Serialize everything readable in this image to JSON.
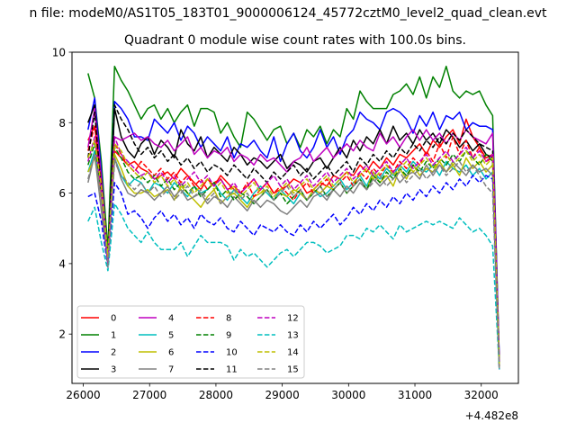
{
  "figure": {
    "suptitle": "n file: modeM0/AS1T05_183T01_9000006124_45772cztM0_level2_quad_clean.evt"
  },
  "chart_data": {
    "type": "line",
    "title": "Quadrant 0 module wise count rates with 100.0s bins.",
    "xlabel": "",
    "ylabel": "",
    "x_offset_label": "+4.482e8",
    "xlim": [
      25830,
      32560
    ],
    "ylim": [
      0.6,
      10
    ],
    "x_ticks": [
      26000,
      27000,
      28000,
      29000,
      30000,
      31000,
      32000
    ],
    "x_tick_labels": [
      "26000",
      "27000",
      "28000",
      "29000",
      "30000",
      "31000",
      "32000"
    ],
    "y_ticks": [
      2,
      4,
      6,
      8,
      10
    ],
    "y_tick_labels": [
      "2",
      "4",
      "6",
      "8",
      "10"
    ],
    "legend_location": "lower left",
    "legend_columns": 4,
    "x": [
      26072,
      26172,
      26272,
      26372,
      26472,
      26572,
      26672,
      26772,
      26872,
      26972,
      27072,
      27172,
      27272,
      27372,
      27472,
      27572,
      27672,
      27772,
      27872,
      27972,
      28072,
      28172,
      28272,
      28372,
      28472,
      28572,
      28672,
      28772,
      28872,
      28972,
      29072,
      29172,
      29272,
      29372,
      29472,
      29572,
      29672,
      29772,
      29872,
      29972,
      30072,
      30172,
      30272,
      30372,
      30472,
      30572,
      30672,
      30772,
      30872,
      30972,
      31072,
      31172,
      31272,
      31372,
      31472,
      31572,
      31672,
      31772,
      31872,
      31972,
      32072,
      32172,
      32272
    ],
    "series": [
      {
        "name": "0",
        "color": "#ff0000",
        "dash": "solid",
        "values": [
          7.5,
          7.9,
          6.3,
          4.2,
          7.2,
          7.0,
          6.8,
          6.9,
          6.7,
          6.6,
          6.4,
          6.5,
          6.6,
          6.4,
          6.7,
          6.5,
          6.3,
          6.1,
          6.4,
          6.2,
          6.5,
          6.3,
          6.1,
          6.0,
          6.2,
          6.4,
          6.1,
          6.3,
          6.0,
          6.1,
          6.2,
          6.4,
          6.3,
          6.0,
          6.1,
          6.3,
          6.2,
          6.5,
          6.4,
          6.6,
          6.5,
          6.8,
          6.6,
          6.9,
          6.7,
          7.0,
          6.8,
          7.1,
          7.0,
          7.2,
          7.4,
          7.1,
          7.5,
          7.3,
          7.6,
          7.8,
          7.4,
          8.1,
          7.6,
          7.3,
          7.0,
          7.1,
          1.1
        ]
      },
      {
        "name": "1",
        "color": "#008000",
        "dash": "solid",
        "values": [
          9.4,
          8.7,
          6.9,
          4.4,
          9.6,
          9.2,
          8.9,
          8.5,
          8.1,
          8.4,
          8.5,
          8.1,
          8.4,
          8.0,
          8.3,
          8.5,
          7.9,
          8.4,
          8.4,
          8.3,
          7.7,
          8.0,
          7.6,
          7.3,
          8.3,
          8.1,
          7.8,
          7.5,
          7.8,
          7.9,
          7.4,
          7.7,
          7.3,
          7.8,
          7.6,
          7.9,
          7.4,
          7.8,
          7.6,
          8.4,
          8.1,
          8.9,
          8.6,
          8.4,
          8.4,
          8.4,
          8.8,
          8.9,
          9.1,
          8.8,
          9.3,
          8.7,
          9.3,
          9.0,
          9.6,
          8.9,
          8.7,
          8.9,
          8.8,
          8.9,
          8.5,
          8.2,
          1.2
        ]
      },
      {
        "name": "2",
        "color": "#0000ff",
        "dash": "solid",
        "values": [
          7.8,
          8.7,
          6.6,
          4.0,
          8.6,
          8.4,
          8.1,
          7.6,
          7.6,
          7.5,
          8.1,
          7.9,
          7.7,
          8.0,
          7.5,
          7.9,
          7.7,
          7.3,
          7.6,
          7.4,
          7.2,
          7.6,
          7.0,
          7.4,
          7.3,
          7.5,
          7.2,
          7.0,
          7.6,
          6.9,
          7.4,
          7.7,
          7.2,
          7.0,
          7.3,
          7.8,
          7.3,
          7.6,
          7.1,
          7.6,
          7.8,
          8.3,
          8.1,
          8.0,
          7.8,
          8.3,
          8.4,
          8.3,
          8.1,
          7.7,
          8.2,
          7.9,
          8.3,
          7.8,
          8.2,
          8.1,
          8.3,
          7.8,
          8.0,
          7.9,
          7.9,
          7.8,
          1.3
        ]
      },
      {
        "name": "3",
        "color": "#000000",
        "dash": "solid",
        "values": [
          8.0,
          8.5,
          6.3,
          4.0,
          8.4,
          7.6,
          7.2,
          7.0,
          7.4,
          7.6,
          7.1,
          7.5,
          7.3,
          7.0,
          7.8,
          7.4,
          7.2,
          7.6,
          7.0,
          7.3,
          7.1,
          6.9,
          7.3,
          7.1,
          6.8,
          7.0,
          6.9,
          6.7,
          6.9,
          7.1,
          6.7,
          6.9,
          6.8,
          6.6,
          6.9,
          7.0,
          6.7,
          7.0,
          7.3,
          7.0,
          7.5,
          7.2,
          7.6,
          7.4,
          7.8,
          7.4,
          7.9,
          7.5,
          7.7,
          7.4,
          7.8,
          7.5,
          7.7,
          7.4,
          7.8,
          7.6,
          7.3,
          7.5,
          7.2,
          7.4,
          7.1,
          7.0,
          1.1
        ]
      },
      {
        "name": "4",
        "color": "#bf00bf",
        "dash": "solid",
        "values": [
          7.3,
          8.4,
          6.4,
          4.1,
          7.6,
          7.5,
          7.6,
          7.7,
          7.5,
          7.6,
          7.4,
          7.3,
          7.5,
          7.2,
          7.4,
          7.6,
          7.1,
          7.3,
          7.0,
          7.2,
          7.1,
          7.3,
          6.9,
          7.1,
          7.0,
          6.8,
          7.1,
          6.9,
          7.0,
          6.8,
          6.6,
          6.9,
          7.0,
          7.3,
          6.9,
          7.1,
          7.3,
          7.0,
          7.2,
          7.4,
          7.2,
          7.5,
          7.3,
          7.2,
          7.7,
          7.4,
          7.6,
          7.3,
          7.6,
          7.8,
          7.5,
          7.8,
          7.5,
          7.7,
          7.4,
          7.7,
          7.5,
          7.8,
          7.6,
          7.5,
          7.4,
          7.7,
          1.2
        ]
      },
      {
        "name": "5",
        "color": "#00bfbf",
        "dash": "solid",
        "values": [
          6.6,
          7.2,
          5.9,
          4.0,
          7.0,
          6.5,
          6.2,
          6.4,
          6.3,
          6.0,
          6.3,
          6.2,
          6.0,
          6.3,
          6.1,
          5.9,
          6.2,
          6.0,
          6.1,
          6.3,
          6.0,
          5.8,
          6.1,
          5.9,
          5.7,
          6.0,
          6.2,
          6.0,
          5.8,
          6.1,
          5.9,
          5.7,
          6.0,
          5.8,
          6.1,
          5.9,
          6.0,
          6.2,
          6.4,
          6.1,
          6.3,
          6.5,
          6.2,
          6.6,
          6.4,
          6.7,
          6.5,
          6.8,
          6.6,
          6.9,
          6.7,
          6.6,
          6.8,
          6.5,
          6.9,
          6.7,
          6.6,
          6.8,
          6.5,
          6.7,
          6.4,
          6.6,
          1.1
        ]
      },
      {
        "name": "6",
        "color": "#bfbf00",
        "dash": "solid",
        "values": [
          6.6,
          7.0,
          5.9,
          4.2,
          7.1,
          6.7,
          6.2,
          6.0,
          6.0,
          6.1,
          5.9,
          6.0,
          6.1,
          5.8,
          6.2,
          6.0,
          5.8,
          5.6,
          5.9,
          6.1,
          5.7,
          5.9,
          6.0,
          5.8,
          5.6,
          5.9,
          6.0,
          6.1,
          5.8,
          6.0,
          5.9,
          6.1,
          6.0,
          5.8,
          6.1,
          6.0,
          6.2,
          6.1,
          6.3,
          6.0,
          6.2,
          6.4,
          6.1,
          6.6,
          6.3,
          6.5,
          6.2,
          6.7,
          6.4,
          6.8,
          6.5,
          6.7,
          6.6,
          6.9,
          6.6,
          6.8,
          6.5,
          7.0,
          6.7,
          6.9,
          6.6,
          6.8,
          1.0
        ]
      },
      {
        "name": "7",
        "color": "#808080",
        "dash": "solid",
        "values": [
          6.3,
          7.1,
          5.5,
          4.0,
          7.0,
          6.4,
          6.0,
          5.9,
          6.1,
          6.0,
          5.8,
          6.0,
          6.2,
          5.9,
          6.1,
          5.8,
          5.9,
          6.0,
          5.7,
          5.9,
          5.8,
          5.6,
          5.9,
          5.7,
          5.5,
          5.8,
          5.6,
          5.8,
          5.7,
          5.5,
          5.4,
          5.6,
          5.8,
          5.6,
          5.9,
          6.0,
          5.8,
          6.1,
          5.9,
          6.2,
          6.0,
          6.3,
          6.1,
          6.4,
          6.2,
          6.4,
          6.6,
          6.3,
          6.5,
          6.6,
          6.4,
          6.8,
          6.5,
          6.8,
          6.6,
          6.9,
          6.7,
          6.5,
          6.8,
          6.6,
          6.7,
          6.5,
          1.0
        ]
      },
      {
        "name": "8",
        "color": "#ff0000",
        "dash": "dashed",
        "values": [
          7.2,
          7.9,
          6.3,
          4.1,
          7.4,
          7.1,
          6.8,
          6.6,
          6.9,
          6.7,
          6.5,
          6.7,
          6.4,
          6.6,
          6.3,
          6.5,
          6.2,
          6.4,
          6.1,
          6.3,
          6.4,
          6.1,
          6.2,
          6.0,
          6.3,
          5.9,
          6.1,
          6.3,
          6.0,
          6.2,
          6.0,
          5.8,
          6.1,
          6.3,
          6.0,
          6.2,
          6.4,
          6.1,
          6.3,
          6.5,
          6.2,
          6.6,
          6.4,
          6.7,
          6.5,
          6.8,
          6.6,
          6.9,
          6.7,
          7.0,
          6.8,
          7.2,
          6.9,
          7.4,
          7.0,
          7.6,
          7.1,
          7.5,
          7.0,
          7.3,
          6.9,
          7.0,
          1.1
        ]
      },
      {
        "name": "9",
        "color": "#008000",
        "dash": "dashed",
        "values": [
          6.8,
          7.4,
          6.0,
          4.2,
          7.3,
          7.0,
          6.6,
          6.4,
          6.5,
          6.3,
          6.5,
          6.2,
          6.4,
          6.1,
          6.3,
          6.0,
          6.2,
          5.9,
          6.1,
          6.3,
          5.9,
          6.1,
          5.8,
          6.0,
          5.9,
          5.7,
          5.9,
          6.1,
          5.8,
          6.0,
          5.7,
          5.9,
          6.1,
          5.8,
          6.0,
          6.2,
          5.9,
          6.1,
          6.3,
          6.0,
          6.2,
          6.4,
          6.1,
          6.5,
          6.3,
          6.6,
          6.4,
          6.7,
          6.5,
          6.8,
          6.6,
          6.9,
          6.7,
          7.0,
          6.8,
          7.1,
          6.9,
          7.2,
          7.0,
          6.8,
          7.1,
          6.9,
          1.1
        ]
      },
      {
        "name": "10",
        "color": "#0000ff",
        "dash": "dashed",
        "values": [
          5.9,
          6.0,
          5.2,
          3.9,
          6.3,
          6.0,
          5.4,
          5.5,
          5.3,
          5.0,
          5.3,
          5.5,
          5.2,
          5.4,
          5.1,
          5.3,
          5.0,
          5.4,
          5.2,
          5.1,
          5.3,
          5.0,
          4.9,
          5.2,
          5.0,
          4.8,
          5.1,
          5.0,
          4.9,
          5.1,
          4.9,
          4.8,
          5.1,
          4.9,
          5.2,
          5.0,
          5.2,
          5.4,
          5.1,
          5.3,
          5.6,
          5.4,
          5.7,
          5.5,
          5.8,
          5.6,
          5.9,
          5.7,
          6.0,
          5.8,
          6.1,
          5.9,
          6.2,
          6.0,
          6.3,
          6.1,
          6.4,
          6.2,
          6.5,
          6.3,
          6.5,
          6.4,
          1.0
        ]
      },
      {
        "name": "11",
        "color": "#000000",
        "dash": "dashed",
        "values": [
          7.0,
          8.3,
          6.1,
          4.1,
          8.5,
          8.1,
          7.8,
          7.4,
          7.1,
          7.3,
          7.0,
          7.2,
          6.9,
          7.1,
          6.8,
          7.0,
          6.7,
          6.9,
          6.6,
          6.8,
          6.7,
          6.5,
          6.8,
          6.6,
          6.4,
          6.7,
          6.5,
          6.3,
          6.6,
          6.4,
          6.6,
          6.8,
          6.5,
          6.7,
          6.4,
          6.6,
          6.8,
          6.5,
          6.7,
          6.9,
          6.6,
          7.0,
          6.8,
          7.1,
          6.9,
          7.2,
          7.0,
          7.3,
          7.1,
          7.4,
          7.2,
          7.5,
          7.3,
          7.6,
          7.4,
          7.7,
          7.5,
          7.8,
          7.6,
          7.4,
          7.3,
          7.2,
          1.1
        ]
      },
      {
        "name": "12",
        "color": "#bf00bf",
        "dash": "dashed",
        "values": [
          6.9,
          7.6,
          6.0,
          4.0,
          7.6,
          7.1,
          6.9,
          6.7,
          6.5,
          6.6,
          6.4,
          6.6,
          6.3,
          6.5,
          6.2,
          6.4,
          6.6,
          6.3,
          6.5,
          6.2,
          6.4,
          6.1,
          6.3,
          6.0,
          6.2,
          6.4,
          6.1,
          6.3,
          6.5,
          6.2,
          6.4,
          6.1,
          6.3,
          6.5,
          6.2,
          6.4,
          6.6,
          6.3,
          6.5,
          6.7,
          6.4,
          6.6,
          6.8,
          6.5,
          6.7,
          6.9,
          6.6,
          6.8,
          7.0,
          6.7,
          6.9,
          7.1,
          6.8,
          7.0,
          7.2,
          6.9,
          7.1,
          7.3,
          7.0,
          7.2,
          6.9,
          7.1,
          1.1
        ]
      },
      {
        "name": "13",
        "color": "#00bfbf",
        "dash": "dashed",
        "values": [
          5.2,
          5.6,
          4.6,
          3.8,
          5.7,
          5.4,
          5.0,
          4.8,
          4.6,
          4.9,
          4.6,
          4.4,
          4.4,
          4.4,
          4.6,
          4.2,
          4.5,
          4.8,
          4.6,
          4.6,
          4.6,
          4.5,
          4.1,
          4.4,
          4.2,
          4.3,
          4.1,
          3.9,
          4.1,
          4.3,
          4.4,
          4.2,
          4.4,
          4.6,
          4.6,
          4.5,
          4.3,
          4.4,
          4.5,
          4.8,
          4.8,
          4.7,
          5.0,
          4.9,
          5.1,
          4.9,
          4.7,
          5.1,
          4.9,
          5.0,
          5.1,
          5.2,
          5.1,
          5.2,
          5.1,
          5.0,
          5.3,
          5.1,
          4.9,
          5.0,
          4.8,
          4.5,
          1.0
        ]
      },
      {
        "name": "14",
        "color": "#bfbf00",
        "dash": "dashed",
        "values": [
          7.0,
          7.5,
          6.2,
          4.2,
          7.4,
          7.2,
          6.8,
          6.6,
          6.4,
          6.6,
          6.3,
          6.5,
          6.2,
          6.4,
          6.1,
          6.3,
          6.0,
          6.2,
          6.4,
          6.1,
          6.3,
          6.0,
          6.2,
          5.9,
          6.1,
          6.3,
          6.0,
          6.2,
          5.9,
          6.1,
          6.3,
          6.0,
          6.2,
          6.4,
          6.1,
          6.3,
          6.5,
          6.2,
          6.4,
          6.6,
          6.3,
          6.5,
          6.7,
          6.4,
          6.6,
          6.8,
          6.5,
          6.7,
          6.9,
          6.6,
          6.8,
          7.0,
          6.7,
          6.9,
          7.1,
          6.8,
          7.0,
          7.2,
          6.9,
          7.1,
          6.8,
          7.0,
          1.1
        ]
      },
      {
        "name": "15",
        "color": "#808080",
        "dash": "dashed",
        "values": [
          6.4,
          7.1,
          5.8,
          3.9,
          6.9,
          6.5,
          6.3,
          6.1,
          6.3,
          6.0,
          6.2,
          5.9,
          6.1,
          5.8,
          6.0,
          6.2,
          5.9,
          6.1,
          5.8,
          6.0,
          5.7,
          5.9,
          6.1,
          5.8,
          6.0,
          5.7,
          5.9,
          6.1,
          5.8,
          6.0,
          6.2,
          5.9,
          6.1,
          5.8,
          6.0,
          6.2,
          5.9,
          6.1,
          6.3,
          6.0,
          6.2,
          6.4,
          6.1,
          6.3,
          6.5,
          6.2,
          6.4,
          6.6,
          6.3,
          6.5,
          6.7,
          6.4,
          6.6,
          6.8,
          6.5,
          6.7,
          6.9,
          6.6,
          6.8,
          6.5,
          6.2,
          6.0,
          1.0
        ]
      }
    ]
  }
}
